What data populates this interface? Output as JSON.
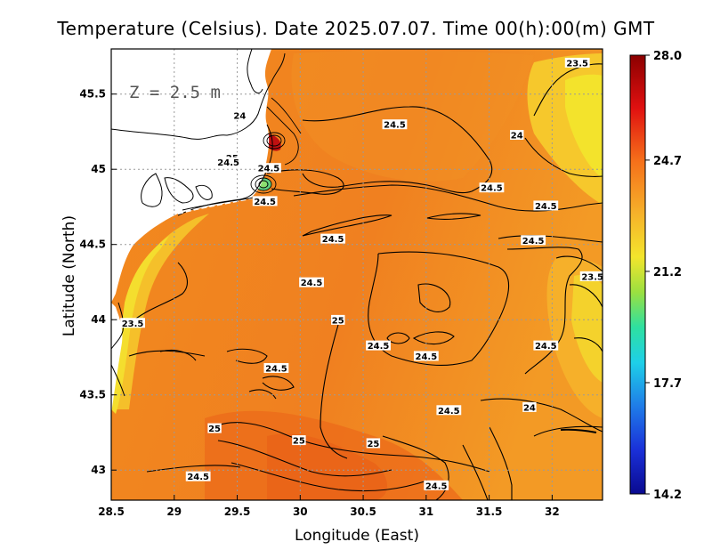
{
  "title": "Temperature (Celsius). Date 2025.07.07. Time 00(h):00(m) GMT",
  "xlabel": "Longitude (East)",
  "ylabel": "Latitude (North)",
  "depth_label": "Z = 2.5 m",
  "x_ticks": [
    "28.5",
    "29",
    "29.5",
    "30",
    "30.5",
    "31",
    "31.5",
    "32"
  ],
  "y_ticks": [
    "43",
    "43.5",
    "44",
    "44.5",
    "45",
    "45.5"
  ],
  "colorbar_ticks": [
    "28.0",
    "24.7",
    "21.2",
    "17.7",
    "14.2"
  ],
  "colors": {
    "sea_warm": "#f07d1e",
    "sea_mid": "#f4a022",
    "coast_cool": "#f3d32c",
    "land": "#ffffff",
    "hot": "#8b0000",
    "cold": "#00008b"
  },
  "chart_data": {
    "type": "heatmap",
    "title": "Temperature (Celsius). Date 2025.07.07. Time 00(h):00(m) GMT",
    "xlabel": "Longitude (East)",
    "ylabel": "Latitude (North)",
    "xlim": [
      28.5,
      32.4
    ],
    "ylim": [
      42.8,
      45.8
    ],
    "colorbar": {
      "min": 14.2,
      "max": 28.0,
      "ticks": [
        28.0,
        24.7,
        21.2,
        17.7,
        14.2
      ]
    },
    "grid": true,
    "contour_labels": [
      {
        "text": "23.5",
        "lon": 32.2,
        "lat": 45.7
      },
      {
        "text": "24",
        "lon": 29.52,
        "lat": 45.35
      },
      {
        "text": "24.5",
        "lon": 30.75,
        "lat": 45.29
      },
      {
        "text": "24",
        "lon": 31.72,
        "lat": 45.22
      },
      {
        "text": "25",
        "lon": 29.46,
        "lat": 45.07
      },
      {
        "text": "24.5",
        "lon": 29.43,
        "lat": 45.04
      },
      {
        "text": "24.5",
        "lon": 29.75,
        "lat": 45.0
      },
      {
        "text": "24.5",
        "lon": 31.52,
        "lat": 44.87
      },
      {
        "text": "24.5",
        "lon": 29.72,
        "lat": 44.78
      },
      {
        "text": "24.5",
        "lon": 31.95,
        "lat": 44.75
      },
      {
        "text": "24.5",
        "lon": 30.26,
        "lat": 44.53
      },
      {
        "text": "24.5",
        "lon": 31.85,
        "lat": 44.52
      },
      {
        "text": "24.5",
        "lon": 30.09,
        "lat": 44.24
      },
      {
        "text": "23.5",
        "lon": 32.32,
        "lat": 44.28
      },
      {
        "text": "23.5",
        "lon": 28.67,
        "lat": 43.97
      },
      {
        "text": "25",
        "lon": 30.3,
        "lat": 43.99
      },
      {
        "text": "24.5",
        "lon": 30.62,
        "lat": 43.82
      },
      {
        "text": "24.5",
        "lon": 31.0,
        "lat": 43.75
      },
      {
        "text": "24.5",
        "lon": 31.95,
        "lat": 43.82
      },
      {
        "text": "24.5",
        "lon": 29.81,
        "lat": 43.67
      },
      {
        "text": "24.5",
        "lon": 31.18,
        "lat": 43.39
      },
      {
        "text": "24",
        "lon": 31.82,
        "lat": 43.41
      },
      {
        "text": "25",
        "lon": 29.32,
        "lat": 43.27
      },
      {
        "text": "25",
        "lon": 29.99,
        "lat": 43.19
      },
      {
        "text": "25",
        "lon": 30.58,
        "lat": 43.17
      },
      {
        "text": "24.5",
        "lon": 29.19,
        "lat": 42.95
      },
      {
        "text": "24.5",
        "lon": 31.08,
        "lat": 42.89
      }
    ]
  }
}
